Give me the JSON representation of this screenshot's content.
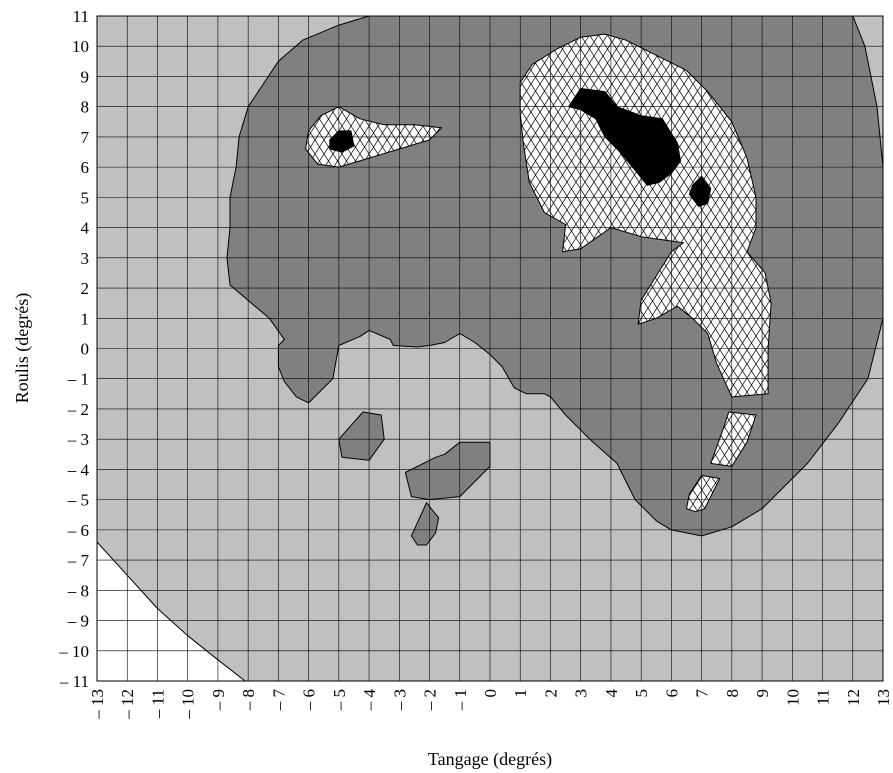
{
  "chart_data": {
    "type": "area",
    "title": "",
    "xlabel": "Tangage (degrés)",
    "ylabel": "Roulis (degrés)",
    "xlim": [
      -13,
      13
    ],
    "ylim": [
      -11,
      11
    ],
    "grid": true,
    "x_ticks": [
      -13,
      -12,
      -11,
      -10,
      -9,
      -8,
      -7,
      -6,
      -5,
      -4,
      -3,
      -2,
      -1,
      0,
      1,
      2,
      3,
      4,
      5,
      6,
      7,
      8,
      9,
      10,
      11,
      12,
      13
    ],
    "x_tick_labels": [
      "– 13",
      "– 12",
      "– 11",
      "– 10",
      "– 9",
      "– 8",
      "– 7",
      "– 6",
      "– 5",
      "– 4",
      "– 3",
      "– 2",
      "– 1",
      "0",
      "1",
      "2",
      "3",
      "4",
      "5",
      "6",
      "7",
      "8",
      "9",
      "10",
      "11",
      "12",
      "13"
    ],
    "y_ticks": [
      11,
      10,
      9,
      8,
      7,
      6,
      5,
      4,
      3,
      2,
      1,
      0,
      -1,
      -2,
      -3,
      -4,
      -5,
      -6,
      -7,
      -8,
      -9,
      -10,
      -11
    ],
    "y_tick_labels": [
      "11",
      "10",
      "9",
      "8",
      "7",
      "6",
      "5",
      "4",
      "3",
      "2",
      "1",
      "0",
      "– 1",
      "– 2",
      "– 3",
      "– 4",
      "– 5",
      "– 6",
      "– 7",
      "– 8",
      "– 9",
      "– 10",
      "– 11"
    ],
    "colors": {
      "zone_outside": "#ffffff",
      "zone_light": "#c0c0c0",
      "zone_dark": "#808080",
      "zone_crosshatch": "#ffffff",
      "zone_black": "#000000"
    },
    "regions": [
      {
        "fill": "light",
        "points": [
          [
            -13,
            -6.4
          ],
          [
            -13,
            11
          ],
          [
            13,
            11
          ],
          [
            13,
            -11
          ],
          [
            -8.1,
            -11
          ],
          [
            -9,
            -10.3
          ],
          [
            -10,
            -9.5
          ],
          [
            -11,
            -8.6
          ],
          [
            -12,
            -7.5
          ]
        ]
      },
      {
        "fill": "dark",
        "points": [
          [
            -7,
            9.5
          ],
          [
            -6.2,
            10.2
          ],
          [
            -5,
            10.7
          ],
          [
            -4,
            11
          ],
          [
            12,
            11
          ],
          [
            12.4,
            10
          ],
          [
            12.8,
            8
          ],
          [
            13,
            6
          ],
          [
            13,
            1
          ],
          [
            12.5,
            -1
          ],
          [
            11.5,
            -2.5
          ],
          [
            10.5,
            -3.8
          ],
          [
            9,
            -5.3
          ],
          [
            8,
            -5.9
          ],
          [
            7,
            -6.2
          ],
          [
            6,
            -6
          ],
          [
            5.5,
            -5.7
          ],
          [
            4.8,
            -5
          ],
          [
            4.2,
            -3.8
          ],
          [
            3.3,
            -3
          ],
          [
            2.5,
            -2.2
          ],
          [
            2,
            -1.6
          ],
          [
            1.8,
            -1.5
          ],
          [
            1.2,
            -1.5
          ],
          [
            0.8,
            -1.3
          ],
          [
            0.4,
            -0.6
          ],
          [
            0,
            -0.2
          ],
          [
            -0.5,
            0.2
          ],
          [
            -1,
            0.5
          ],
          [
            -1.5,
            0.2
          ],
          [
            -2,
            0.1
          ],
          [
            -2.4,
            0.05
          ],
          [
            -3.2,
            0.1
          ],
          [
            -3.3,
            0.3
          ],
          [
            -4,
            0.6
          ],
          [
            -4.3,
            0.4
          ],
          [
            -5,
            0.1
          ],
          [
            -5.2,
            -1
          ],
          [
            -6,
            -1.8
          ],
          [
            -6.4,
            -1.6
          ],
          [
            -6.8,
            -1.1
          ],
          [
            -7,
            -0.6
          ],
          [
            -7,
            0.1
          ],
          [
            -6.8,
            0.3
          ],
          [
            -7.3,
            1
          ],
          [
            -8.6,
            2.1
          ],
          [
            -8.7,
            3
          ],
          [
            -8.6,
            4
          ],
          [
            -8.6,
            5
          ],
          [
            -8.4,
            6
          ],
          [
            -8.3,
            7
          ],
          [
            -8,
            8
          ]
        ]
      },
      {
        "fill": "dark",
        "points": [
          [
            -5,
            -3
          ],
          [
            -4.2,
            -2.1
          ],
          [
            -3.6,
            -2.2
          ],
          [
            -3.5,
            -3
          ],
          [
            -4,
            -3.7
          ],
          [
            -4.9,
            -3.6
          ]
        ]
      },
      {
        "fill": "dark",
        "points": [
          [
            -1,
            -3.1
          ],
          [
            0,
            -3.1
          ],
          [
            0,
            -3.9
          ],
          [
            -1,
            -4.9
          ],
          [
            -2,
            -5
          ],
          [
            -2.6,
            -4.9
          ],
          [
            -2.8,
            -4.1
          ],
          [
            -1.8,
            -3.6
          ],
          [
            -1.5,
            -3.5
          ]
        ]
      },
      {
        "fill": "dark",
        "points": [
          [
            -2.1,
            -5.1
          ],
          [
            -1.7,
            -5.6
          ],
          [
            -1.8,
            -6.1
          ],
          [
            -2.1,
            -6.5
          ],
          [
            -2.4,
            -6.5
          ],
          [
            -2.6,
            -6.2
          ]
        ]
      },
      {
        "fill": "crosshatch",
        "points": [
          [
            -5,
            8
          ],
          [
            -4.3,
            7.6
          ],
          [
            -3.5,
            7.4
          ],
          [
            -2.5,
            7.4
          ],
          [
            -1.6,
            7.3
          ],
          [
            -2,
            6.9
          ],
          [
            -3,
            6.6
          ],
          [
            -4,
            6.3
          ],
          [
            -5,
            6
          ],
          [
            -5.7,
            6.1
          ],
          [
            -6.1,
            6.6
          ],
          [
            -6,
            7.2
          ],
          [
            -5.6,
            7.7
          ]
        ]
      },
      {
        "fill": "crosshatch",
        "points": [
          [
            1.4,
            9.4
          ],
          [
            2.2,
            9.9
          ],
          [
            3,
            10.3
          ],
          [
            3.8,
            10.4
          ],
          [
            4.5,
            10.2
          ],
          [
            5.5,
            9.7
          ],
          [
            6.5,
            9.2
          ],
          [
            7.2,
            8.5
          ],
          [
            8,
            7.5
          ],
          [
            8.5,
            6.3
          ],
          [
            8.8,
            5
          ],
          [
            8.8,
            4
          ],
          [
            8.5,
            3.2
          ],
          [
            9.1,
            2.5
          ],
          [
            9.3,
            1.5
          ],
          [
            9.2,
            0
          ],
          [
            9.2,
            -1.5
          ],
          [
            8,
            -1.6
          ],
          [
            7.5,
            -0.5
          ],
          [
            7.2,
            0.5
          ],
          [
            6.7,
            1
          ],
          [
            6.2,
            1.4
          ],
          [
            5.5,
            1
          ],
          [
            4.9,
            0.8
          ],
          [
            5,
            1.6
          ],
          [
            5.5,
            2.4
          ],
          [
            6,
            3.2
          ],
          [
            6.4,
            3.5
          ],
          [
            5,
            3.7
          ],
          [
            4,
            4
          ],
          [
            3,
            3.3
          ],
          [
            2.4,
            3.2
          ],
          [
            2.5,
            4.1
          ],
          [
            1.8,
            4.5
          ],
          [
            1.3,
            5.5
          ],
          [
            1.1,
            6.8
          ],
          [
            1,
            7.8
          ],
          [
            1,
            8.8
          ]
        ]
      },
      {
        "fill": "crosshatch",
        "points": [
          [
            7.9,
            -2.1
          ],
          [
            8.8,
            -2.2
          ],
          [
            8.5,
            -3.1
          ],
          [
            8,
            -3.9
          ],
          [
            7.3,
            -3.8
          ],
          [
            7.7,
            -2.7
          ]
        ]
      },
      {
        "fill": "crosshatch",
        "points": [
          [
            7,
            -4.2
          ],
          [
            7.6,
            -4.3
          ],
          [
            7.3,
            -4.9
          ],
          [
            7.1,
            -5.3
          ],
          [
            6.8,
            -5.4
          ],
          [
            6.5,
            -5.3
          ],
          [
            6.6,
            -4.8
          ]
        ]
      },
      {
        "fill": "black",
        "points": [
          [
            -5,
            7.2
          ],
          [
            -4.6,
            7.2
          ],
          [
            -4.5,
            6.7
          ],
          [
            -4.9,
            6.5
          ],
          [
            -5.3,
            6.6
          ],
          [
            -5.3,
            6.9
          ]
        ]
      },
      {
        "fill": "black",
        "points": [
          [
            3,
            8.6
          ],
          [
            3.8,
            8.5
          ],
          [
            4.2,
            8
          ],
          [
            5,
            7.7
          ],
          [
            5.7,
            7.6
          ],
          [
            6.2,
            6.8
          ],
          [
            6.3,
            6.2
          ],
          [
            6,
            5.8
          ],
          [
            5.6,
            5.5
          ],
          [
            5.2,
            5.4
          ],
          [
            4.8,
            5.9
          ],
          [
            4.3,
            6.5
          ],
          [
            3.8,
            7
          ],
          [
            3.5,
            7.6
          ],
          [
            3,
            7.9
          ],
          [
            2.6,
            8
          ]
        ]
      },
      {
        "fill": "black",
        "points": [
          [
            7,
            5.7
          ],
          [
            7.3,
            5.3
          ],
          [
            7.2,
            4.8
          ],
          [
            6.9,
            4.7
          ],
          [
            6.6,
            5.1
          ],
          [
            6.7,
            5.4
          ]
        ]
      }
    ]
  }
}
